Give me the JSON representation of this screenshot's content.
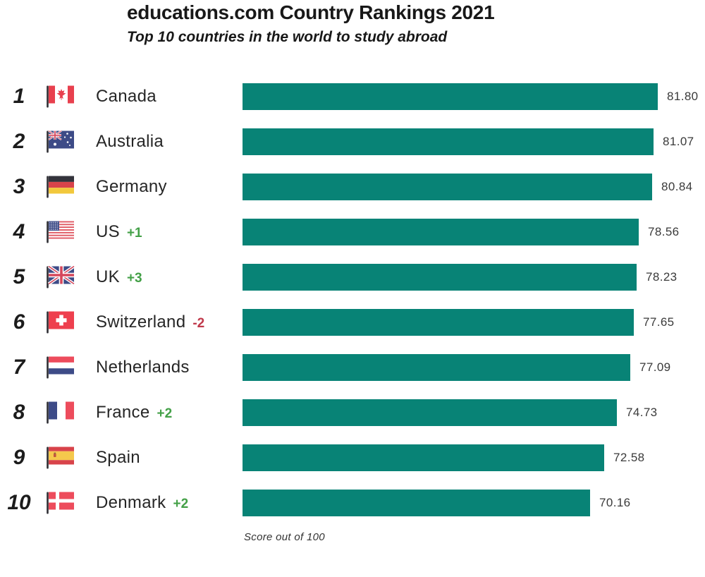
{
  "header": {
    "title": "educations.com Country Rankings 2021",
    "subtitle": "Top 10 countries in the world to study abroad"
  },
  "footnote": "Score out of 100",
  "colors": {
    "bar": "#088376",
    "rank_up": "#43a047",
    "rank_down": "#c0394b"
  },
  "chart_data": {
    "type": "bar",
    "orientation": "horizontal",
    "title": "educations.com Country Rankings 2021",
    "subtitle": "Top 10 countries in the world to study abroad",
    "note": "Score out of 100",
    "value_axis": {
      "min": 0,
      "max": 100,
      "label": "Score out of 100"
    },
    "grid": false,
    "legend": false,
    "categories": [
      "Canada",
      "Australia",
      "Germany",
      "US",
      "UK",
      "Switzerland",
      "Netherlands",
      "France",
      "Spain",
      "Denmark"
    ],
    "values": [
      81.8,
      81.07,
      80.84,
      78.56,
      78.23,
      77.65,
      77.09,
      74.73,
      72.58,
      70.16
    ],
    "rows": [
      {
        "rank": "1",
        "country": "Canada",
        "flag_icon": "flag-canada",
        "change": "",
        "value": 81.8,
        "value_label": "81.80"
      },
      {
        "rank": "2",
        "country": "Australia",
        "flag_icon": "flag-australia",
        "change": "",
        "value": 81.07,
        "value_label": "81.07"
      },
      {
        "rank": "3",
        "country": "Germany",
        "flag_icon": "flag-germany",
        "change": "",
        "value": 80.84,
        "value_label": "80.84"
      },
      {
        "rank": "4",
        "country": "US",
        "flag_icon": "flag-us",
        "change": "+1",
        "value": 78.56,
        "value_label": "78.56"
      },
      {
        "rank": "5",
        "country": "UK",
        "flag_icon": "flag-uk",
        "change": "+3",
        "value": 78.23,
        "value_label": "78.23"
      },
      {
        "rank": "6",
        "country": "Switzerland",
        "flag_icon": "flag-switzerland",
        "change": "-2",
        "value": 77.65,
        "value_label": "77.65"
      },
      {
        "rank": "7",
        "country": "Netherlands",
        "flag_icon": "flag-netherlands",
        "change": "",
        "value": 77.09,
        "value_label": "77.09"
      },
      {
        "rank": "8",
        "country": "France",
        "flag_icon": "flag-france",
        "change": "+2",
        "value": 74.73,
        "value_label": "74.73"
      },
      {
        "rank": "9",
        "country": "Spain",
        "flag_icon": "flag-spain",
        "change": "",
        "value": 72.58,
        "value_label": "72.58"
      },
      {
        "rank": "10",
        "country": "Denmark",
        "flag_icon": "flag-denmark",
        "change": "+2",
        "value": 70.16,
        "value_label": "70.16"
      }
    ]
  }
}
